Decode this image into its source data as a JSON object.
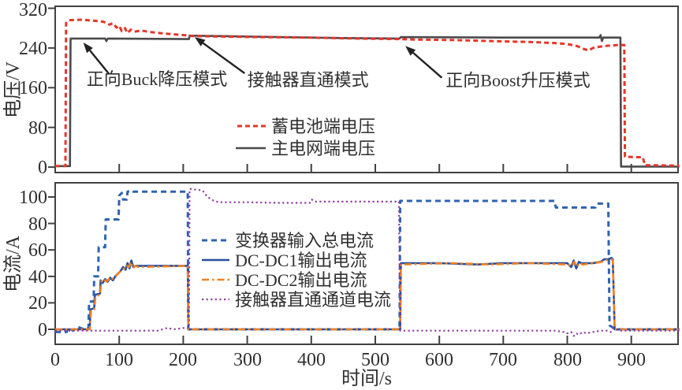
{
  "figure": {
    "bg": "#ffffff",
    "axis_color": "#414141",
    "text_color": "#303030",
    "arrow_color": "#222222"
  },
  "chart_data": [
    {
      "id": "voltage",
      "type": "line",
      "ylabel": "电压/V",
      "yticks": [
        0,
        80,
        160,
        240,
        320
      ],
      "ylim": [
        -11,
        324
      ],
      "grid": false,
      "legend_loc": "center right",
      "annotations": [
        {
          "id": "buck-mode",
          "text": "正向Buck降压模式",
          "text_t": 49,
          "text_v": 165,
          "tail_t": 84,
          "tail_v": 188,
          "tip_t": 44,
          "tip_v": 251
        },
        {
          "id": "contactor-mode",
          "text": "接触器直通模式",
          "text_t": 300,
          "text_v": 164,
          "tail_t": 296,
          "tail_v": 189,
          "tip_t": 218,
          "tip_v": 262
        },
        {
          "id": "boost-mode",
          "text": "正向Boost升压模式",
          "text_t": 610,
          "text_v": 163,
          "tail_t": 604,
          "tail_v": 180,
          "tip_t": 547,
          "tip_v": 244
        }
      ],
      "series": [
        {
          "id": "grid-voltage",
          "name": "主电网端电压",
          "color": "#4b4b4d",
          "style": "solid",
          "x": [
            0,
            23,
            24,
            78,
            80,
            82,
            209,
            210,
            260,
            350,
            450,
            538,
            540,
            700,
            800,
            850,
            852,
            854,
            856,
            875,
            883,
            884,
            975
          ],
          "y": [
            2,
            2,
            259,
            259,
            254,
            259,
            258,
            265,
            264,
            262,
            260,
            259,
            262,
            261,
            261,
            261,
            266,
            254,
            261,
            261,
            261,
            1,
            1
          ]
        },
        {
          "id": "battery-voltage",
          "name": "蓄电池端电压",
          "color": "#e5362b",
          "style": "dashed",
          "dash": "6 4",
          "x": [
            0,
            16,
            17,
            22,
            40,
            60,
            75,
            85,
            90,
            96,
            100,
            104,
            109,
            113,
            118,
            124,
            135,
            150,
            170,
            190,
            209,
            215,
            260,
            320,
            400,
            470,
            538,
            560,
            620,
            680,
            740,
            780,
            800,
            815,
            826,
            833,
            840,
            848,
            858,
            868,
            880,
            889,
            890,
            905,
            918,
            921,
            975
          ],
          "y": [
            2,
            2,
            290,
            296,
            297,
            295,
            293,
            287,
            290,
            281,
            285,
            274,
            280,
            270,
            277,
            273,
            275,
            272,
            269,
            267,
            265,
            264,
            263,
            262,
            261,
            259,
            258,
            257,
            256,
            254,
            252,
            250,
            248,
            244,
            238,
            235,
            240,
            242,
            244,
            245,
            246,
            246,
            21,
            20,
            20,
            4,
            3
          ]
        }
      ]
    },
    {
      "id": "current",
      "type": "line",
      "xlabel": "时间/s",
      "ylabel": "电流/A",
      "xticks": [
        0,
        100,
        200,
        300,
        400,
        500,
        600,
        700,
        800,
        900
      ],
      "yticks": [
        0,
        20,
        40,
        60,
        80,
        100
      ],
      "xlim": [
        0,
        973
      ],
      "ylim": [
        -11.3,
        110.7
      ],
      "grid": false,
      "legend_loc": "center left",
      "annotations": [],
      "series": [
        {
          "id": "converter-input-current",
          "name": "变换器输入总电流",
          "color": "#2f63af",
          "style": "dashed",
          "dash": "7 5",
          "x": [
            0,
            18,
            20,
            28,
            35,
            45,
            52,
            53,
            60,
            61,
            67,
            68,
            78,
            79,
            99,
            100,
            104,
            106,
            112,
            113,
            120,
            122,
            207,
            208,
            538,
            539,
            780,
            782,
            844,
            847,
            864,
            866,
            872,
            880,
            975
          ],
          "y": [
            -2,
            -2,
            1,
            -1,
            2,
            0,
            1,
            21,
            21,
            40,
            40,
            62,
            62,
            83,
            83,
            101,
            103,
            98,
            98,
            104,
            105,
            104,
            104,
            0,
            0,
            97,
            97,
            92,
            92,
            95,
            95,
            3,
            1,
            0,
            0
          ]
        },
        {
          "id": "dcdc1-output-current",
          "name": "DC-DC1输出电流",
          "color": "#27509f",
          "style": "solid",
          "x": [
            0,
            54,
            55,
            61,
            62,
            70,
            71,
            74,
            78,
            82,
            86,
            90,
            94,
            98,
            102,
            106,
            110,
            113,
            116,
            119,
            122,
            126,
            130,
            207,
            208,
            539,
            540,
            600,
            660,
            700,
            760,
            800,
            806,
            810,
            814,
            818,
            822,
            840,
            852,
            858,
            864,
            869,
            871,
            874,
            975
          ],
          "y": [
            0,
            0,
            15,
            16,
            26,
            27,
            37,
            35,
            38,
            36,
            39,
            37,
            40,
            42,
            44,
            47,
            45,
            50,
            46,
            52,
            47,
            48,
            48,
            48,
            0,
            0,
            50,
            50,
            49,
            50,
            50,
            50,
            47,
            52,
            46,
            51,
            50,
            50,
            51,
            53,
            53,
            54,
            53,
            0,
            0
          ]
        },
        {
          "id": "dcdc2-output-current",
          "name": "DC-DC2输出电流",
          "color": "#f08122",
          "style": "dashdot",
          "dash": "9 4 2.5 4",
          "x": [
            0,
            54,
            56,
            61,
            63,
            70,
            72,
            76,
            80,
            84,
            88,
            92,
            96,
            100,
            104,
            108,
            112,
            115,
            118,
            121,
            125,
            130,
            207,
            208,
            539,
            540,
            620,
            680,
            740,
            800,
            807,
            811,
            815,
            819,
            824,
            842,
            854,
            860,
            865,
            869,
            871,
            874,
            975
          ],
          "y": [
            0,
            0,
            14,
            15,
            25,
            26,
            36,
            38,
            36,
            38,
            37,
            40,
            41,
            43,
            45,
            46,
            48,
            47,
            51,
            46,
            48,
            47,
            48,
            0,
            0,
            49,
            50,
            49,
            50,
            49,
            48,
            51,
            47,
            50,
            49,
            50,
            51,
            52,
            53,
            53,
            52,
            0,
            0
          ]
        },
        {
          "id": "contactor-channel-current",
          "name": "接触器直通通道电流",
          "color": "#8f3f9f",
          "style": "dotted",
          "dash": "2.2 3.4",
          "x": [
            0,
            40,
            100,
            160,
            175,
            185,
            200,
            209,
            210,
            212,
            230,
            238,
            248,
            256,
            300,
            350,
            398,
            401,
            405,
            450,
            500,
            537,
            539,
            560,
            620,
            700,
            780,
            795,
            800,
            806,
            810,
            814,
            818,
            824,
            830,
            840,
            852,
            862,
            868,
            872,
            880,
            900,
            975
          ],
          "y": [
            -1,
            -1,
            -1,
            -1,
            1,
            0,
            1,
            1,
            106,
            106,
            105,
            100,
            97,
            96,
            96,
            95.5,
            95.5,
            98,
            96.5,
            96.5,
            96.5,
            96.5,
            -1,
            -1,
            -1,
            -1,
            -1,
            -2,
            -3,
            -2,
            -5,
            -3,
            -4,
            -2,
            -3,
            -2,
            -1,
            -1,
            -2,
            1,
            -1,
            -1,
            -1
          ]
        }
      ]
    }
  ]
}
